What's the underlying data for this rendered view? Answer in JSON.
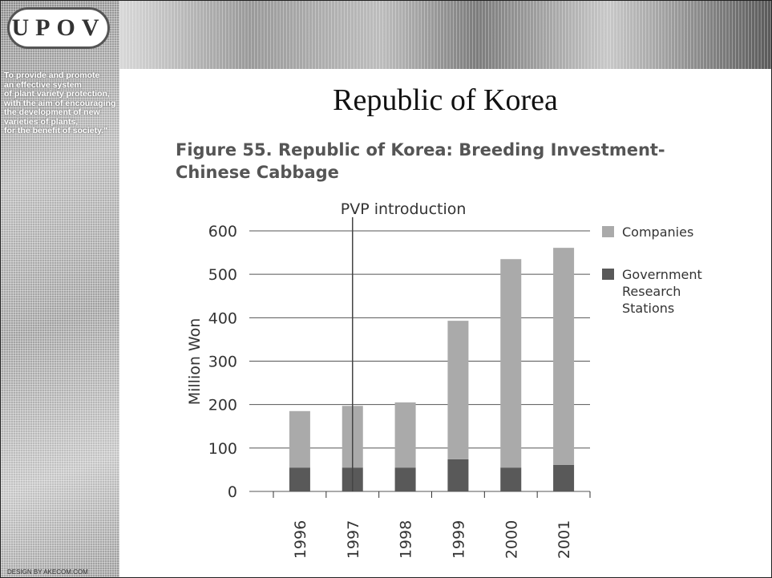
{
  "slide": {
    "logo": "UPOV",
    "motto": [
      "To provide and promote",
      "an effective system",
      "of plant variety protection,",
      "with the aim of encouraging",
      "the development of new",
      "varieties of plants,",
      "for the benefit of society.\""
    ],
    "title": "Republic of Korea",
    "credit": "DESIGN BY AKECOM.COM"
  },
  "chart_data": {
    "type": "stacked-bar",
    "title": [
      "Figure 55.  Republic of Korea: Breeding Investment-",
      "Chinese Cabbage"
    ],
    "ylabel": "Million Won",
    "annotation": {
      "text": "PVP introduction",
      "category": "1997"
    },
    "categories": [
      "1996",
      "1997",
      "1998",
      "1999",
      "2000",
      "2001"
    ],
    "series": [
      {
        "name": "Government Research Stations",
        "color": "#595959",
        "values": [
          55,
          55,
          55,
          74,
          55,
          61
        ]
      },
      {
        "name": "Companies",
        "color": "#aaaaaa",
        "values": [
          130,
          142,
          150,
          319,
          480,
          500
        ]
      }
    ],
    "ylim": [
      0,
      600
    ],
    "yticks": [
      0,
      100,
      200,
      300,
      400,
      500,
      600
    ],
    "grid": true,
    "legend": "right"
  }
}
